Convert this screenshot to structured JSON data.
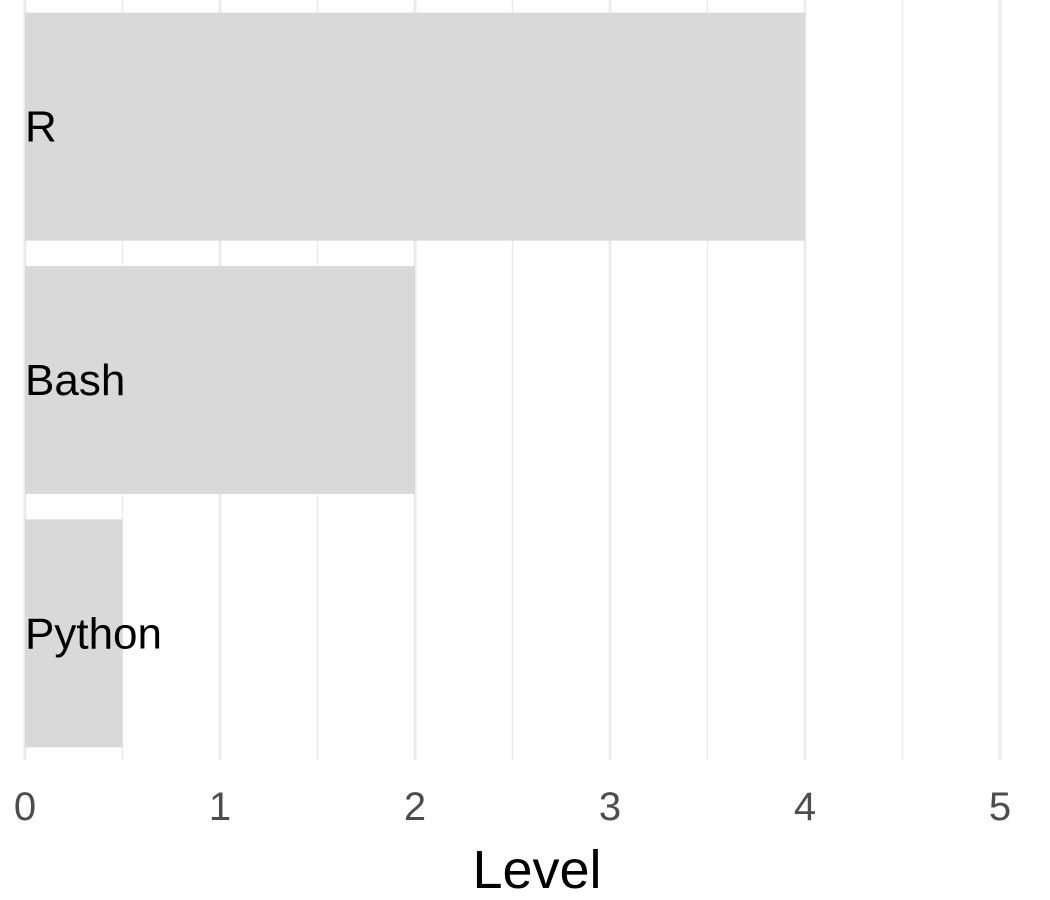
{
  "chart_data": {
    "type": "bar",
    "orientation": "horizontal",
    "categories": [
      "R",
      "Bash",
      "Python"
    ],
    "values": [
      4,
      2,
      0.5
    ],
    "title": "",
    "xlabel": "Level",
    "ylabel": "",
    "xlim": [
      0,
      5
    ],
    "xticks": [
      "0",
      "1",
      "2",
      "3",
      "4",
      "5"
    ],
    "grid": true,
    "legend": "none",
    "bar_color": "#d9d9d9",
    "grid_color": "#ebebeb"
  }
}
